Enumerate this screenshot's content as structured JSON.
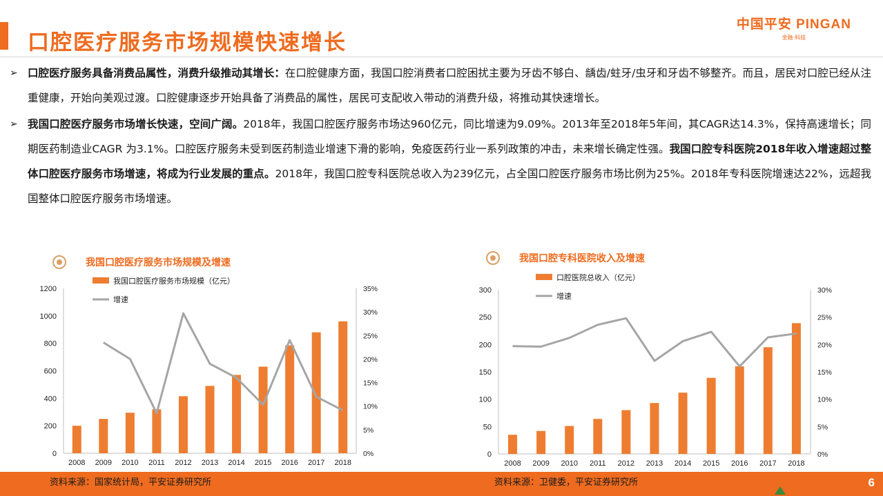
{
  "page": {
    "title": "口腔医疗服务市场规模快速增长",
    "logo_main": "中国平安 PINGAN",
    "logo_sub": "金融·科技",
    "page_number": "6"
  },
  "bullets": [
    {
      "marker": "➢",
      "bold": "口腔医疗服务具备消费品属性，消费升级推动其增长：",
      "text": "在口腔健康方面，我国口腔消费者口腔困扰主要为牙齿不够白、龋齿/蛀牙/虫牙和牙齿不够整齐。而且，居民对口腔已经从注重健康，开始向美观过渡。口腔健康逐步开始具备了消费品的属性，居民可支配收入带动的消费升级，将推动其快速增长。"
    },
    {
      "marker": "➢",
      "bold": "我国口腔医疗服务市场增长快速，空间广阔。",
      "text": "2018年，我国口腔医疗服务市场达960亿元，同比增速为9.09%。2013年至2018年5年间，其CAGR达14.3%，保持高速增长；同期医药制造业CAGR 为3.1%。口腔医疗服务未受到医药制造业增速下滑的影响，免疫医药行业一系列政策的冲击，未来增长确定性强。",
      "bold2": "我国口腔专科医院2018年收入增速超过整体口腔医疗服务市场增速，将成为行业发展的重点。",
      "text2": "2018年，我国口腔专科医院总收入为239亿元，占全国口腔医疗服务市场比例为25%。2018年专科医院增速达22%，远超我国整体口腔医疗服务市场增速。"
    }
  ],
  "chart_data": [
    {
      "type": "bar",
      "title": "我国口腔医疗服务市场规模及增速",
      "categories": [
        "2008",
        "2009",
        "2010",
        "2011",
        "2012",
        "2013",
        "2014",
        "2015",
        "2016",
        "2017",
        "2018"
      ],
      "series": [
        {
          "name": "我国口腔医疗服务市场规模（亿元）",
          "type": "bar",
          "axis": "left",
          "values": [
            200,
            250,
            295,
            320,
            415,
            490,
            570,
            630,
            785,
            880,
            960
          ]
        },
        {
          "name": "增速",
          "type": "line",
          "axis": "right",
          "values": [
            null,
            23.5,
            20,
            8.5,
            29.7,
            19,
            16,
            10.3,
            24,
            12,
            9.1
          ]
        }
      ],
      "ylim": [
        0,
        1200
      ],
      "y_ticks": [
        "0",
        "200",
        "400",
        "600",
        "800",
        "1000",
        "1200"
      ],
      "y_tick_values": [
        0,
        200,
        400,
        600,
        800,
        1000,
        1200
      ],
      "y2lim": [
        0,
        35
      ],
      "y2_ticks": [
        "0%",
        "5%",
        "10%",
        "15%",
        "20%",
        "25%",
        "30%",
        "35%"
      ],
      "y2_tick_values": [
        0,
        5,
        10,
        15,
        20,
        25,
        30,
        35
      ],
      "legend_position": "top-left",
      "bar_color": "#ee7d31",
      "line_color": "#a5a5a5",
      "source": "资料来源：国家统计局，平安证券研究所"
    },
    {
      "type": "bar",
      "title": "我国口腔专科医院收入及增速",
      "categories": [
        "2008",
        "2009",
        "2010",
        "2011",
        "2012",
        "2013",
        "2014",
        "2015",
        "2016",
        "2017",
        "2018"
      ],
      "series": [
        {
          "name": "口腔医院总收入（亿元）",
          "type": "bar",
          "axis": "left",
          "values": [
            35,
            42,
            51,
            64,
            80,
            93,
            112,
            139,
            160,
            195,
            239
          ]
        },
        {
          "name": "增速",
          "type": "line",
          "axis": "right",
          "values": [
            19.7,
            19.6,
            21.2,
            23.6,
            24.8,
            17,
            20.6,
            22.3,
            16,
            21.3,
            22
          ]
        }
      ],
      "ylim": [
        0,
        300
      ],
      "y_ticks": [
        "0",
        "50",
        "100",
        "150",
        "200",
        "250",
        "300"
      ],
      "y_tick_values": [
        0,
        50,
        100,
        150,
        200,
        250,
        300
      ],
      "y2lim": [
        0,
        30
      ],
      "y2_ticks": [
        "0%",
        "5%",
        "10%",
        "15%",
        "20%",
        "25%",
        "30%"
      ],
      "y2_tick_values": [
        0,
        5,
        10,
        15,
        20,
        25,
        30
      ],
      "legend_position": "top-left",
      "bar_color": "#ee7d31",
      "line_color": "#a5a5a5",
      "source": "资料来源：卫健委，平安证券研究所"
    }
  ]
}
